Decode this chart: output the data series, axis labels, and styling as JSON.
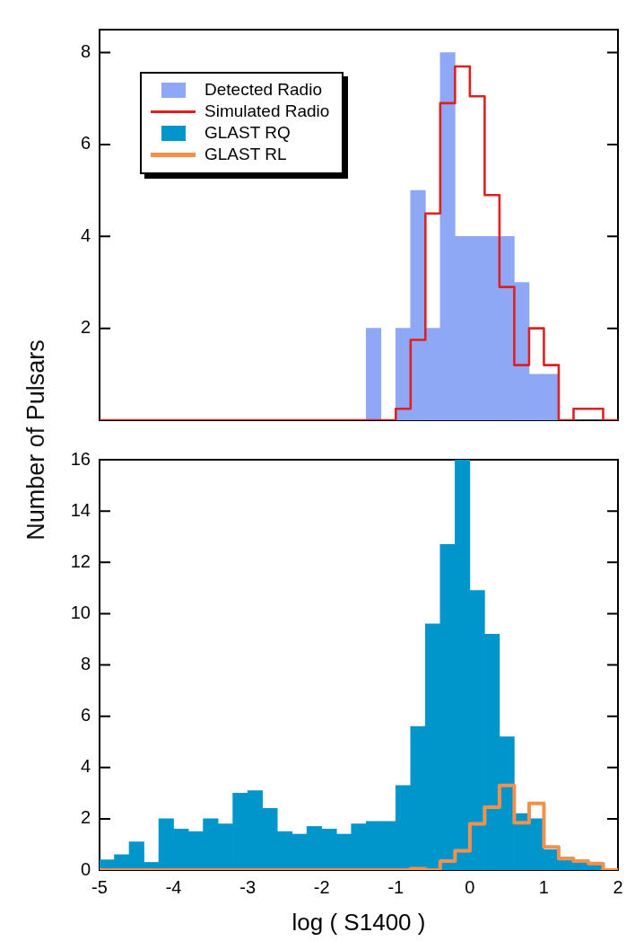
{
  "chart_data": [
    {
      "type": "histogram",
      "ylabel": "Number of Pulsars",
      "legend": "top left",
      "xlim": [
        -5,
        2
      ],
      "ylim": [
        0,
        8.5
      ],
      "yticks": [
        2,
        4,
        6,
        8
      ],
      "tick_labels": "y",
      "grid": false,
      "series": [
        {
          "name": "Detected Radio",
          "color": "#8fa8f5",
          "bins": [
            -1.4,
            -1.2,
            -1.0,
            -0.8,
            -0.6,
            -0.4,
            -0.2,
            0,
            0.2,
            0.4,
            0.6,
            0.8,
            1.0,
            1.2,
            1.4,
            1.6,
            1.8,
            2.0
          ],
          "values": [
            2,
            0,
            2,
            5,
            2,
            8,
            4,
            4,
            4,
            4,
            3,
            1,
            1,
            0,
            0,
            0,
            0
          ]
        },
        {
          "name": "Simulated Radio",
          "type": "step",
          "color": "#e02020",
          "x": [
            -5,
            -1.0,
            -0.8,
            -0.6,
            -0.4,
            -0.2,
            0,
            0.2,
            0.4,
            0.6,
            0.8,
            1.0,
            1.2,
            1.4,
            1.6,
            1.8,
            2.0
          ],
          "values": [
            0,
            0.25,
            1.75,
            4.5,
            6.9,
            7.7,
            7.05,
            4.9,
            2.9,
            1.2,
            2,
            1.2,
            0,
            0.25,
            0.25,
            0,
            0
          ]
        }
      ]
    },
    {
      "type": "histogram",
      "legend": "top left",
      "xlabel": "log ( S1400 )",
      "xlim": [
        -5,
        2
      ],
      "xticks": [
        -5,
        -4,
        -3,
        -2,
        -1,
        0,
        1,
        2
      ],
      "ylim": [
        0,
        16
      ],
      "yticks": [
        0,
        2,
        4,
        6,
        8,
        10,
        12,
        14,
        16
      ],
      "grid": false,
      "series": [
        {
          "name": "GLAST RQ",
          "color": "#0096cc",
          "bins": [
            -5,
            -4.8,
            -4.6,
            -4.4,
            -4.2,
            -4,
            -3.8,
            -3.6,
            -3.4,
            -3.2,
            -3,
            -2.8,
            -2.6,
            -2.4,
            -2.2,
            -2,
            -1.8,
            -1.6,
            -1.4,
            -1.2,
            -1,
            -0.8,
            -0.6,
            -0.4,
            -0.2,
            0,
            0.2,
            0.4,
            0.6,
            0.8,
            1,
            1.2,
            1.4,
            1.6,
            1.8,
            2
          ],
          "values": [
            0.4,
            0.6,
            1.1,
            0.3,
            2,
            1.6,
            1.5,
            2,
            1.8,
            3,
            3.1,
            2.4,
            1.5,
            1.4,
            1.7,
            1.6,
            1.4,
            1.8,
            1.9,
            1.9,
            3.3,
            5.6,
            9.6,
            12.7,
            16,
            10.9,
            9.2,
            5.2,
            2.2,
            2,
            0.8,
            0.5,
            0.4,
            0.2,
            0
          ]
        },
        {
          "name": "GLAST RL",
          "type": "step",
          "color": "#f5904a",
          "x": [
            -5,
            -0.8,
            -0.6,
            -0.4,
            -0.2,
            0,
            0.2,
            0.4,
            0.6,
            0.8,
            1.0,
            1.2,
            1.4,
            1.6,
            1.8,
            2.0
          ],
          "values": [
            0,
            0.05,
            0,
            0.35,
            0.75,
            1.8,
            2.45,
            3.3,
            1.85,
            2.6,
            0.9,
            0.45,
            0.35,
            0.25,
            0,
            0
          ]
        }
      ]
    }
  ]
}
